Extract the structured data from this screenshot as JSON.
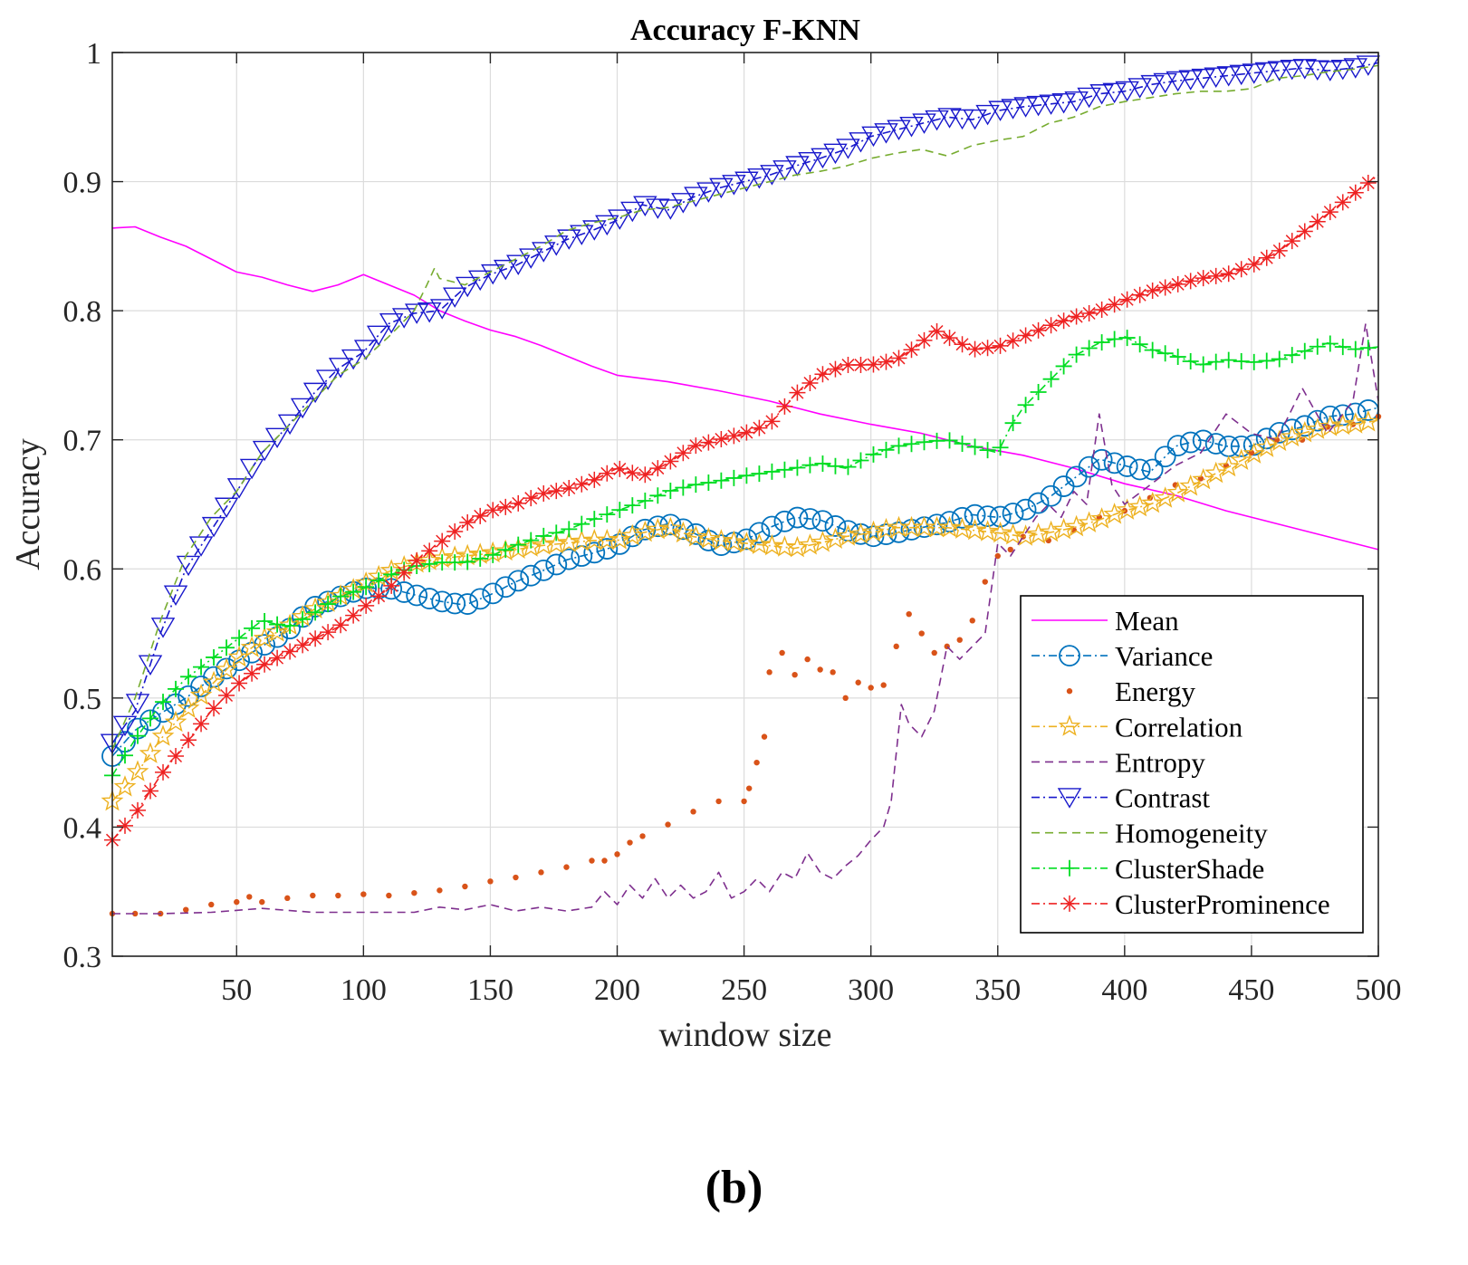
{
  "caption": "(b)",
  "chart_data": {
    "type": "line",
    "title": "Accuracy F-KNN",
    "xlabel": "window size",
    "ylabel": "Accuracy",
    "xlim": [
      1,
      500
    ],
    "ylim": [
      0.3,
      1.0
    ],
    "grid": true,
    "legend_position": "bottom-right",
    "xticks": [
      50,
      100,
      150,
      200,
      250,
      300,
      350,
      400,
      450,
      500
    ],
    "yticks": [
      0.3,
      0.4,
      0.5,
      0.6,
      0.7,
      0.8,
      0.9,
      1.0
    ],
    "xtick_labels": [
      "50",
      "100",
      "150",
      "200",
      "250",
      "300",
      "350",
      "400",
      "450",
      "500"
    ],
    "ytick_labels": [
      "0.3",
      "0.4",
      "0.5",
      "0.6",
      "0.7",
      "0.8",
      "0.9",
      "1"
    ],
    "series": [
      {
        "name": "Mean",
        "color": "#ff00ff",
        "line": "solid",
        "marker": "none",
        "x": [
          1,
          10,
          20,
          30,
          40,
          50,
          60,
          70,
          80,
          90,
          100,
          110,
          120,
          130,
          140,
          150,
          160,
          170,
          180,
          190,
          200,
          220,
          240,
          260,
          280,
          300,
          320,
          340,
          360,
          380,
          400,
          420,
          440,
          460,
          480,
          500
        ],
        "y": [
          0.864,
          0.865,
          0.857,
          0.85,
          0.84,
          0.83,
          0.826,
          0.82,
          0.815,
          0.82,
          0.828,
          0.82,
          0.812,
          0.8,
          0.792,
          0.785,
          0.78,
          0.773,
          0.765,
          0.757,
          0.75,
          0.745,
          0.738,
          0.73,
          0.72,
          0.712,
          0.705,
          0.695,
          0.688,
          0.678,
          0.666,
          0.657,
          0.645,
          0.635,
          0.625,
          0.615
        ]
      },
      {
        "name": "Variance",
        "color": "#0072bd",
        "line": "dashdot",
        "marker": "circle",
        "x": [
          1,
          10,
          20,
          30,
          40,
          50,
          60,
          70,
          80,
          90,
          100,
          110,
          120,
          130,
          140,
          150,
          160,
          170,
          180,
          190,
          200,
          210,
          220,
          230,
          240,
          250,
          260,
          270,
          280,
          290,
          300,
          310,
          320,
          330,
          340,
          350,
          360,
          370,
          380,
          390,
          400,
          410,
          420,
          430,
          440,
          450,
          460,
          470,
          480,
          490,
          500
        ],
        "y": [
          0.455,
          0.475,
          0.488,
          0.5,
          0.515,
          0.528,
          0.54,
          0.552,
          0.57,
          0.578,
          0.585,
          0.585,
          0.58,
          0.575,
          0.572,
          0.58,
          0.59,
          0.598,
          0.607,
          0.612,
          0.618,
          0.63,
          0.635,
          0.628,
          0.618,
          0.622,
          0.632,
          0.64,
          0.638,
          0.63,
          0.625,
          0.628,
          0.632,
          0.636,
          0.642,
          0.64,
          0.645,
          0.655,
          0.67,
          0.685,
          0.68,
          0.675,
          0.695,
          0.7,
          0.695,
          0.695,
          0.705,
          0.71,
          0.718,
          0.72,
          0.725
        ]
      },
      {
        "name": "Energy",
        "color": "#d95319",
        "line": "none",
        "marker": "dot",
        "x": [
          1,
          10,
          20,
          30,
          40,
          50,
          55,
          60,
          70,
          80,
          90,
          100,
          110,
          120,
          130,
          140,
          150,
          160,
          170,
          180,
          190,
          195,
          200,
          205,
          210,
          220,
          230,
          240,
          250,
          252,
          255,
          258,
          260,
          265,
          270,
          275,
          280,
          285,
          290,
          295,
          300,
          305,
          310,
          315,
          320,
          325,
          330,
          335,
          340,
          345,
          350,
          355,
          360,
          370,
          380,
          390,
          400,
          410,
          420,
          430,
          440,
          450,
          460,
          470,
          480,
          490,
          500
        ],
        "y": [
          0.333,
          0.333,
          0.333,
          0.336,
          0.34,
          0.342,
          0.346,
          0.342,
          0.345,
          0.347,
          0.347,
          0.348,
          0.347,
          0.349,
          0.351,
          0.354,
          0.358,
          0.361,
          0.365,
          0.369,
          0.374,
          0.374,
          0.379,
          0.388,
          0.393,
          0.402,
          0.412,
          0.42,
          0.42,
          0.43,
          0.45,
          0.47,
          0.52,
          0.535,
          0.518,
          0.53,
          0.522,
          0.52,
          0.5,
          0.512,
          0.508,
          0.51,
          0.54,
          0.565,
          0.55,
          0.535,
          0.54,
          0.545,
          0.56,
          0.59,
          0.61,
          0.615,
          0.625,
          0.622,
          0.63,
          0.64,
          0.645,
          0.655,
          0.665,
          0.67,
          0.68,
          0.69,
          0.7,
          0.7,
          0.71,
          0.712,
          0.718
        ]
      },
      {
        "name": "Correlation",
        "color": "#edb120",
        "line": "dashdot",
        "marker": "star",
        "x": [
          1,
          10,
          20,
          30,
          40,
          50,
          60,
          70,
          80,
          90,
          100,
          110,
          120,
          130,
          140,
          150,
          160,
          170,
          180,
          190,
          200,
          210,
          220,
          230,
          240,
          250,
          260,
          270,
          280,
          290,
          300,
          310,
          320,
          330,
          340,
          350,
          360,
          370,
          380,
          390,
          400,
          410,
          420,
          430,
          440,
          450,
          460,
          470,
          480,
          490,
          500
        ],
        "y": [
          0.42,
          0.44,
          0.468,
          0.49,
          0.51,
          0.53,
          0.545,
          0.555,
          0.568,
          0.578,
          0.588,
          0.598,
          0.604,
          0.608,
          0.61,
          0.612,
          0.615,
          0.618,
          0.62,
          0.622,
          0.622,
          0.628,
          0.632,
          0.625,
          0.622,
          0.62,
          0.618,
          0.616,
          0.62,
          0.625,
          0.628,
          0.632,
          0.632,
          0.632,
          0.63,
          0.628,
          0.625,
          0.628,
          0.632,
          0.638,
          0.645,
          0.65,
          0.658,
          0.668,
          0.678,
          0.688,
          0.698,
          0.705,
          0.71,
          0.712,
          0.715
        ]
      },
      {
        "name": "Entropy",
        "color": "#7e2f8e",
        "line": "dashed",
        "marker": "none",
        "x": [
          1,
          20,
          40,
          60,
          80,
          100,
          120,
          130,
          140,
          150,
          160,
          170,
          180,
          190,
          195,
          200,
          205,
          210,
          215,
          220,
          225,
          230,
          235,
          240,
          245,
          250,
          255,
          260,
          265,
          270,
          275,
          280,
          285,
          290,
          295,
          300,
          305,
          308,
          312,
          315,
          320,
          325,
          330,
          335,
          340,
          345,
          350,
          355,
          360,
          365,
          370,
          375,
          380,
          385,
          390,
          395,
          400,
          410,
          420,
          430,
          440,
          450,
          460,
          470,
          480,
          490,
          495,
          500
        ],
        "y": [
          0.333,
          0.333,
          0.334,
          0.337,
          0.334,
          0.334,
          0.334,
          0.338,
          0.336,
          0.34,
          0.335,
          0.338,
          0.335,
          0.338,
          0.35,
          0.34,
          0.355,
          0.345,
          0.36,
          0.345,
          0.355,
          0.345,
          0.35,
          0.365,
          0.345,
          0.35,
          0.36,
          0.35,
          0.365,
          0.36,
          0.38,
          0.365,
          0.36,
          0.37,
          0.378,
          0.39,
          0.4,
          0.42,
          0.495,
          0.48,
          0.47,
          0.49,
          0.54,
          0.53,
          0.54,
          0.55,
          0.62,
          0.61,
          0.625,
          0.64,
          0.65,
          0.64,
          0.66,
          0.65,
          0.72,
          0.665,
          0.65,
          0.665,
          0.68,
          0.69,
          0.72,
          0.705,
          0.7,
          0.74,
          0.705,
          0.73,
          0.79,
          0.73
        ]
      },
      {
        "name": "Contrast",
        "color": "#1818cc",
        "line": "dashdot",
        "marker": "triangle-down",
        "x": [
          1,
          10,
          20,
          30,
          40,
          50,
          60,
          70,
          80,
          90,
          100,
          110,
          120,
          130,
          140,
          150,
          160,
          170,
          180,
          190,
          200,
          210,
          220,
          230,
          240,
          250,
          260,
          270,
          280,
          290,
          300,
          310,
          320,
          330,
          340,
          350,
          360,
          370,
          380,
          390,
          400,
          410,
          420,
          430,
          440,
          450,
          460,
          470,
          480,
          490,
          500
        ],
        "y": [
          0.465,
          0.49,
          0.55,
          0.6,
          0.63,
          0.66,
          0.69,
          0.71,
          0.735,
          0.755,
          0.768,
          0.79,
          0.798,
          0.8,
          0.818,
          0.828,
          0.835,
          0.845,
          0.855,
          0.862,
          0.87,
          0.882,
          0.878,
          0.888,
          0.895,
          0.9,
          0.905,
          0.912,
          0.918,
          0.925,
          0.935,
          0.94,
          0.945,
          0.95,
          0.948,
          0.955,
          0.958,
          0.96,
          0.962,
          0.968,
          0.97,
          0.975,
          0.978,
          0.98,
          0.982,
          0.984,
          0.986,
          0.988,
          0.986,
          0.988,
          0.992
        ]
      },
      {
        "name": "Homogeneity",
        "color": "#77ac30",
        "line": "dashed",
        "marker": "none",
        "x": [
          1,
          10,
          20,
          30,
          40,
          50,
          60,
          70,
          80,
          90,
          100,
          110,
          120,
          125,
          128,
          130,
          140,
          150,
          160,
          170,
          180,
          190,
          200,
          210,
          220,
          230,
          240,
          250,
          260,
          270,
          280,
          290,
          300,
          310,
          320,
          330,
          340,
          350,
          360,
          370,
          380,
          390,
          400,
          410,
          420,
          430,
          440,
          450,
          460,
          470,
          480,
          490,
          500
        ],
        "y": [
          0.46,
          0.5,
          0.56,
          0.61,
          0.64,
          0.66,
          0.69,
          0.71,
          0.73,
          0.75,
          0.762,
          0.78,
          0.8,
          0.82,
          0.833,
          0.825,
          0.82,
          0.83,
          0.84,
          0.85,
          0.862,
          0.868,
          0.872,
          0.878,
          0.88,
          0.885,
          0.89,
          0.895,
          0.9,
          0.905,
          0.908,
          0.912,
          0.918,
          0.922,
          0.925,
          0.92,
          0.928,
          0.932,
          0.935,
          0.945,
          0.95,
          0.958,
          0.962,
          0.965,
          0.968,
          0.97,
          0.97,
          0.972,
          0.98,
          0.982,
          0.985,
          0.987,
          0.99
        ]
      },
      {
        "name": "ClusterShade",
        "color": "#00dd22",
        "line": "dashdot",
        "marker": "plus",
        "x": [
          1,
          10,
          20,
          30,
          40,
          50,
          60,
          70,
          80,
          90,
          100,
          110,
          120,
          130,
          140,
          150,
          160,
          170,
          180,
          190,
          200,
          210,
          220,
          230,
          240,
          250,
          260,
          270,
          280,
          290,
          300,
          310,
          320,
          330,
          340,
          350,
          355,
          360,
          370,
          380,
          390,
          400,
          410,
          420,
          430,
          440,
          450,
          460,
          470,
          480,
          490,
          500
        ],
        "y": [
          0.44,
          0.468,
          0.495,
          0.515,
          0.53,
          0.545,
          0.56,
          0.555,
          0.565,
          0.578,
          0.585,
          0.595,
          0.602,
          0.605,
          0.605,
          0.61,
          0.618,
          0.625,
          0.63,
          0.638,
          0.645,
          0.652,
          0.66,
          0.665,
          0.668,
          0.672,
          0.675,
          0.678,
          0.682,
          0.678,
          0.688,
          0.695,
          0.698,
          0.7,
          0.695,
          0.69,
          0.71,
          0.725,
          0.745,
          0.765,
          0.775,
          0.78,
          0.77,
          0.765,
          0.758,
          0.762,
          0.76,
          0.762,
          0.768,
          0.775,
          0.77,
          0.772
        ]
      },
      {
        "name": "ClusterProminence",
        "color": "#ee2222",
        "line": "dashdot",
        "marker": "asterisk",
        "x": [
          1,
          10,
          20,
          30,
          40,
          50,
          60,
          70,
          80,
          90,
          100,
          110,
          120,
          130,
          140,
          150,
          160,
          170,
          180,
          190,
          200,
          210,
          220,
          230,
          240,
          250,
          260,
          270,
          280,
          290,
          300,
          310,
          320,
          325,
          330,
          340,
          350,
          360,
          370,
          380,
          390,
          400,
          410,
          420,
          430,
          440,
          450,
          460,
          470,
          480,
          490,
          500
        ],
        "y": [
          0.39,
          0.41,
          0.44,
          0.465,
          0.49,
          0.51,
          0.525,
          0.535,
          0.545,
          0.555,
          0.57,
          0.585,
          0.605,
          0.62,
          0.635,
          0.645,
          0.65,
          0.658,
          0.662,
          0.668,
          0.678,
          0.672,
          0.682,
          0.695,
          0.7,
          0.705,
          0.712,
          0.735,
          0.75,
          0.758,
          0.758,
          0.762,
          0.775,
          0.785,
          0.78,
          0.77,
          0.772,
          0.78,
          0.788,
          0.795,
          0.8,
          0.808,
          0.815,
          0.82,
          0.825,
          0.828,
          0.835,
          0.845,
          0.86,
          0.875,
          0.89,
          0.905
        ]
      }
    ]
  }
}
